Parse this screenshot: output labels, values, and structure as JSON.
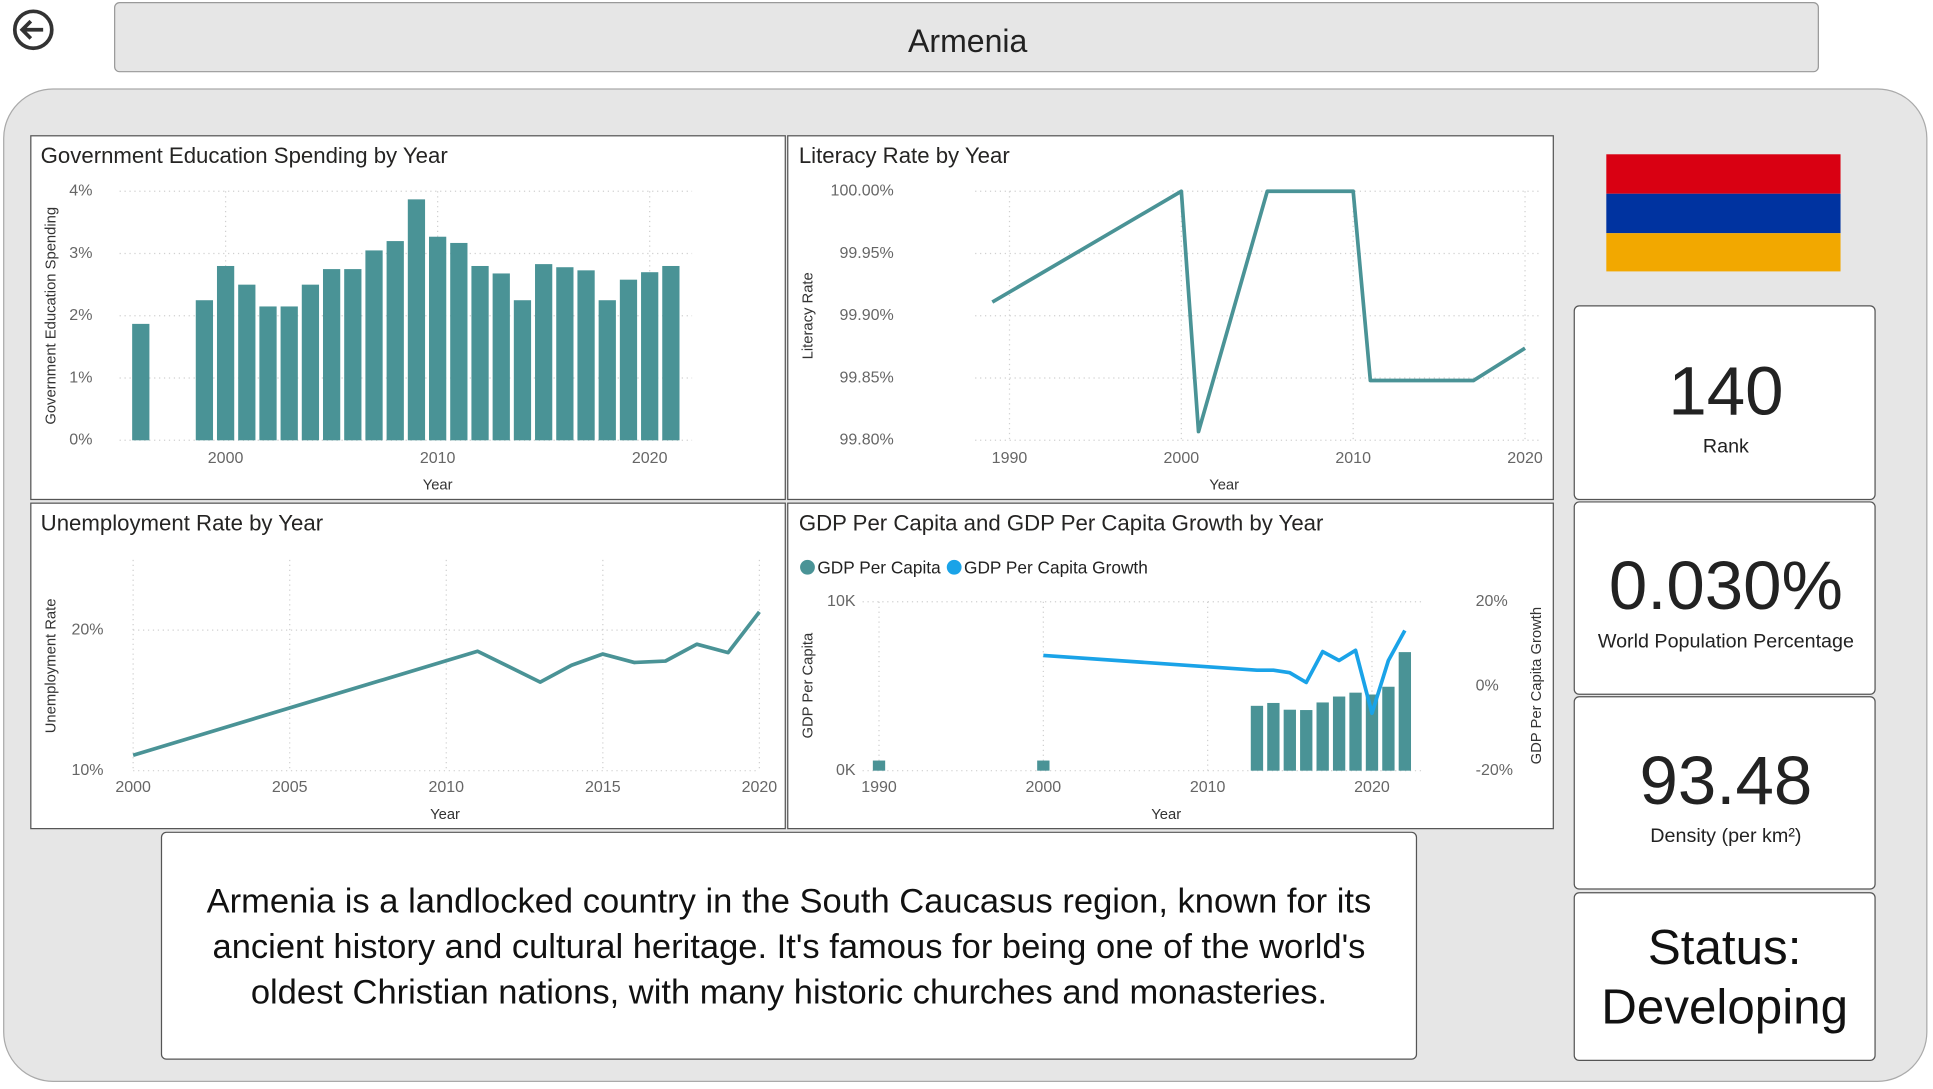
{
  "header": {
    "title": "Armenia"
  },
  "chart_data": [
    {
      "type": "bar",
      "title": "Government Education Spending by Year",
      "x_label": "Year",
      "y_label": "Government Education Spending",
      "x": [
        1996,
        1999,
        2000,
        2001,
        2002,
        2003,
        2004,
        2005,
        2006,
        2007,
        2008,
        2009,
        2010,
        2011,
        2012,
        2013,
        2014,
        2015,
        2016,
        2017,
        2018,
        2019,
        2020,
        2021
      ],
      "values": [
        1.87,
        2.25,
        2.8,
        2.5,
        2.15,
        2.15,
        2.5,
        2.75,
        2.75,
        3.05,
        3.2,
        3.87,
        3.27,
        3.17,
        2.8,
        2.68,
        2.25,
        2.83,
        2.78,
        2.73,
        2.25,
        2.58,
        2.7,
        2.8
      ],
      "color": "#4a9396",
      "xlim": [
        1995,
        2022
      ],
      "xticks": [
        2000,
        2010,
        2020
      ],
      "ylim": [
        0,
        4
      ],
      "yticks": [
        {
          "value": 0,
          "label": "0%"
        },
        {
          "value": 1,
          "label": "1%"
        },
        {
          "value": 2,
          "label": "2%"
        },
        {
          "value": 3,
          "label": "3%"
        },
        {
          "value": 4,
          "label": "4%"
        }
      ],
      "grid": true
    },
    {
      "type": "line",
      "title": "Literacy Rate by Year",
      "x_label": "Year",
      "y_label": "Literacy Rate",
      "x": [
        1989,
        2000,
        2001,
        2005,
        2010,
        2011,
        2017,
        2020
      ],
      "values": [
        99.911,
        100,
        99.807,
        100,
        100,
        99.848,
        99.848,
        99.874
      ],
      "color": "#4a9396",
      "xlim": [
        1988,
        2021
      ],
      "xticks": [
        1990,
        2000,
        2010,
        2020
      ],
      "ylim": [
        99.8,
        100
      ],
      "yticks": [
        {
          "value": 99.8,
          "label": "99.80%"
        },
        {
          "value": 99.85,
          "label": "99.85%"
        },
        {
          "value": 99.9,
          "label": "99.90%"
        },
        {
          "value": 99.95,
          "label": "99.95%"
        },
        {
          "value": 100,
          "label": "100.00%"
        }
      ],
      "grid": true
    },
    {
      "type": "line",
      "title": "Unemployment Rate by Year",
      "x_label": "Year",
      "y_label": "Unemployment Rate",
      "x": [
        2000,
        2011,
        2013,
        2014,
        2015,
        2016,
        2017,
        2018,
        2019,
        2020
      ],
      "values": [
        11.1,
        18.5,
        16.3,
        17.5,
        18.3,
        17.7,
        17.8,
        19.0,
        18.4,
        21.3
      ],
      "color": "#4a9396",
      "xlim": [
        2000,
        2020
      ],
      "xticks": [
        2000,
        2005,
        2010,
        2015,
        2020
      ],
      "ylim": [
        10,
        25
      ],
      "yticks": [
        {
          "value": 10,
          "label": "10%"
        },
        {
          "value": 20,
          "label": "20%"
        }
      ],
      "grid": true
    },
    {
      "type": "combo",
      "title": "GDP Per Capita and GDP Per Capita Growth by Year",
      "x_label": "Year",
      "y_label": "GDP Per Capita",
      "y2_label": "GDP Per Capita Growth",
      "x": [
        1990,
        2000,
        2013,
        2014,
        2015,
        2016,
        2017,
        2018,
        2019,
        2020,
        2021,
        2022
      ],
      "series": [
        {
          "name": "GDP Per Capita",
          "type": "bar",
          "color": "#4a9396",
          "values": [
            600,
            600,
            3840,
            4010,
            3610,
            3590,
            4040,
            4390,
            4620,
            4510,
            4970,
            7020
          ]
        },
        {
          "name": "GDP Per Capita Growth",
          "type": "line",
          "axis": "y2",
          "color": "#1aa3e8",
          "values": [
            null,
            7.3,
            3.8,
            3.8,
            3.2,
            0.9,
            8.2,
            6.1,
            8.5,
            -6.4,
            6.1,
            13.2
          ]
        }
      ],
      "xlim": [
        1989,
        2023
      ],
      "xticks": [
        1990,
        2000,
        2010,
        2020
      ],
      "ylim": [
        0,
        10000
      ],
      "yticks": [
        {
          "value": 0,
          "label": "0K"
        },
        {
          "value": 10000,
          "label": "10K"
        }
      ],
      "y2lim": [
        -20,
        20
      ],
      "y2ticks": [
        {
          "value": -20,
          "label": "-20%"
        },
        {
          "value": 0,
          "label": "0%"
        },
        {
          "value": 20,
          "label": "20%"
        }
      ],
      "grid": true
    }
  ],
  "cards": [
    {
      "value": "140",
      "label": "Rank"
    },
    {
      "value": "0.030%",
      "label": "World Population Percentage"
    },
    {
      "value": "93.48",
      "label": "Density (per km²)"
    }
  ],
  "status": "Status: Developing",
  "description": "Armenia is a landlocked country in the South Caucasus region, known for its ancient history and cultural heritage. It's famous for being one of the world's oldest Christian nations, with many historic churches and monasteries."
}
